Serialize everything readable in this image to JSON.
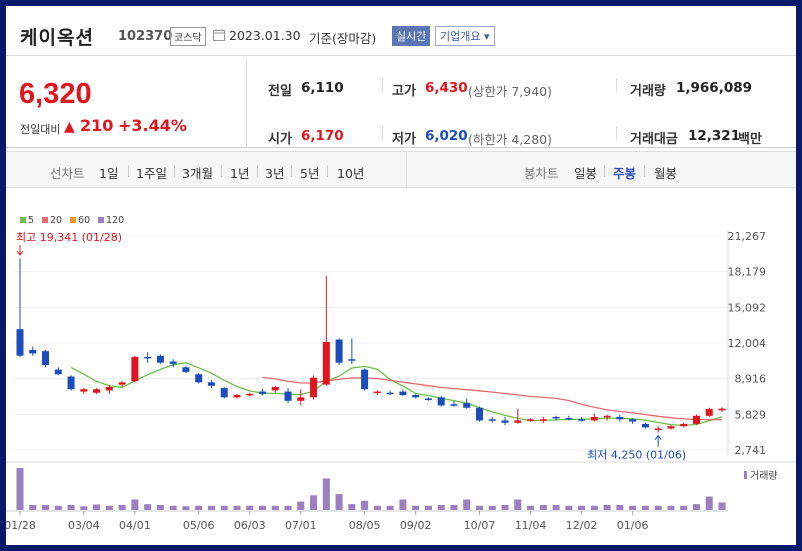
{
  "header": {
    "name": "케이옥션",
    "code": "102370",
    "market": "코스닥",
    "date": "2023.01.30",
    "basis": "기준(장마감)",
    "realtime": "실시간",
    "company_info": "기업개요"
  },
  "quote": {
    "price": "6,320",
    "change_label": "전일대비",
    "change_value": "210",
    "change_pct": "+3.44%",
    "prev_close_label": "전일",
    "prev_close": "6,110",
    "open_label": "시가",
    "open": "6,170",
    "high_label": "고가",
    "high": "6,430",
    "upper_limit": "(상한가 7,940)",
    "low_label": "저가",
    "low": "6,020",
    "lower_limit": "(하한가 4,280)",
    "volume_label": "거래량",
    "volume": "1,966,089",
    "amount_label": "거래대금",
    "amount": "12,321",
    "amount_unit": "백만"
  },
  "tabs": {
    "line_label": "선차트",
    "line_tabs": [
      "1일",
      "1주일",
      "3개월",
      "1년",
      "3년",
      "5년",
      "10년"
    ],
    "candle_label": "봉차트",
    "candle_tabs": [
      "일봉",
      "주봉",
      "월봉"
    ],
    "active_candle": "주봉"
  },
  "colors": {
    "up": "#e0151e",
    "down": "#1a4dbb",
    "ma5": "#6cc04a",
    "ma20": "#e36b6b",
    "ma60": "#f0962c",
    "ma120": "#9b80c0"
  },
  "chart_data": {
    "type": "candlestick",
    "interval": "weekly",
    "legend": [
      "5",
      "20",
      "60",
      "120"
    ],
    "y_ticks": [
      "21,267",
      "18,179",
      "15,092",
      "12,004",
      "8,916",
      "5,829",
      "2,741"
    ],
    "ylim": [
      2741,
      21267
    ],
    "x_ticks": [
      "01/28",
      "03/04",
      "04/01",
      "05/06",
      "06/03",
      "07/01",
      "08/05",
      "09/02",
      "10/07",
      "11/04",
      "12/02",
      "01/06"
    ],
    "x_tick_index": [
      0,
      5,
      9,
      14,
      18,
      22,
      27,
      31,
      36,
      40,
      44,
      48
    ],
    "high_annotation": "최고 19,341 (01/28)",
    "low_annotation": "최저 4,250 (01/06)",
    "volume_label": "거래량",
    "candles": [
      {
        "o": 13200,
        "h": 19341,
        "l": 10800,
        "c": 10900
      },
      {
        "o": 11400,
        "h": 11700,
        "l": 10900,
        "c": 11100
      },
      {
        "o": 11300,
        "h": 11400,
        "l": 9900,
        "c": 10100
      },
      {
        "o": 9700,
        "h": 9900,
        "l": 9200,
        "c": 9300
      },
      {
        "o": 9100,
        "h": 9200,
        "l": 7900,
        "c": 8000
      },
      {
        "o": 7800,
        "h": 8100,
        "l": 7600,
        "c": 8000
      },
      {
        "o": 7700,
        "h": 8100,
        "l": 7600,
        "c": 8000
      },
      {
        "o": 7900,
        "h": 8400,
        "l": 7600,
        "c": 8200
      },
      {
        "o": 8400,
        "h": 8700,
        "l": 8200,
        "c": 8600
      },
      {
        "o": 8700,
        "h": 10900,
        "l": 8600,
        "c": 10800
      },
      {
        "o": 10800,
        "h": 11200,
        "l": 10300,
        "c": 10700
      },
      {
        "o": 10900,
        "h": 11000,
        "l": 10200,
        "c": 10300
      },
      {
        "o": 10400,
        "h": 10600,
        "l": 9900,
        "c": 10200
      },
      {
        "o": 9900,
        "h": 10000,
        "l": 9400,
        "c": 9500
      },
      {
        "o": 9300,
        "h": 9400,
        "l": 8500,
        "c": 8600
      },
      {
        "o": 8600,
        "h": 8800,
        "l": 8100,
        "c": 8300
      },
      {
        "o": 8100,
        "h": 8200,
        "l": 7200,
        "c": 7300
      },
      {
        "o": 7300,
        "h": 7600,
        "l": 7200,
        "c": 7500
      },
      {
        "o": 7500,
        "h": 7700,
        "l": 7400,
        "c": 7600
      },
      {
        "o": 7800,
        "h": 8000,
        "l": 7500,
        "c": 7600
      },
      {
        "o": 7900,
        "h": 8300,
        "l": 7700,
        "c": 8200
      },
      {
        "o": 7800,
        "h": 8100,
        "l": 6800,
        "c": 7000
      },
      {
        "o": 7000,
        "h": 8000,
        "l": 6600,
        "c": 7300
      },
      {
        "o": 7300,
        "h": 9200,
        "l": 7100,
        "c": 9000
      },
      {
        "o": 8400,
        "h": 17800,
        "l": 8300,
        "c": 12100
      },
      {
        "o": 12300,
        "h": 12400,
        "l": 10100,
        "c": 10300
      },
      {
        "o": 10600,
        "h": 12400,
        "l": 10200,
        "c": 10500
      },
      {
        "o": 9700,
        "h": 9800,
        "l": 7900,
        "c": 8000
      },
      {
        "o": 7700,
        "h": 7900,
        "l": 7500,
        "c": 7800
      },
      {
        "o": 7700,
        "h": 7900,
        "l": 7500,
        "c": 7600
      },
      {
        "o": 7800,
        "h": 8000,
        "l": 7400,
        "c": 7500
      },
      {
        "o": 7500,
        "h": 7600,
        "l": 7200,
        "c": 7300
      },
      {
        "o": 7200,
        "h": 7300,
        "l": 7000,
        "c": 7100
      },
      {
        "o": 7300,
        "h": 7400,
        "l": 6500,
        "c": 6600
      },
      {
        "o": 6700,
        "h": 7000,
        "l": 6500,
        "c": 6600
      },
      {
        "o": 6800,
        "h": 7200,
        "l": 6300,
        "c": 6400
      },
      {
        "o": 6400,
        "h": 6500,
        "l": 5200,
        "c": 5300
      },
      {
        "o": 5400,
        "h": 5600,
        "l": 5100,
        "c": 5300
      },
      {
        "o": 5300,
        "h": 5600,
        "l": 4900,
        "c": 5100
      },
      {
        "o": 5100,
        "h": 6300,
        "l": 5000,
        "c": 5300
      },
      {
        "o": 5300,
        "h": 5500,
        "l": 5200,
        "c": 5400
      },
      {
        "o": 5300,
        "h": 5600,
        "l": 5100,
        "c": 5400
      },
      {
        "o": 5600,
        "h": 5700,
        "l": 5300,
        "c": 5500
      },
      {
        "o": 5500,
        "h": 5700,
        "l": 5300,
        "c": 5400
      },
      {
        "o": 5400,
        "h": 5600,
        "l": 5200,
        "c": 5300
      },
      {
        "o": 5300,
        "h": 5900,
        "l": 5200,
        "c": 5600
      },
      {
        "o": 5600,
        "h": 5800,
        "l": 5300,
        "c": 5700
      },
      {
        "o": 5600,
        "h": 5800,
        "l": 5200,
        "c": 5400
      },
      {
        "o": 5400,
        "h": 5500,
        "l": 5000,
        "c": 5200
      },
      {
        "o": 5000,
        "h": 5100,
        "l": 4600,
        "c": 4700
      },
      {
        "o": 4500,
        "h": 4800,
        "l": 4250,
        "c": 4600
      },
      {
        "o": 4600,
        "h": 4900,
        "l": 4500,
        "c": 4800
      },
      {
        "o": 4800,
        "h": 5100,
        "l": 4700,
        "c": 5000
      },
      {
        "o": 5000,
        "h": 5800,
        "l": 4900,
        "c": 5700
      },
      {
        "o": 5700,
        "h": 6400,
        "l": 5600,
        "c": 6300
      },
      {
        "o": 6170,
        "h": 6430,
        "l": 6020,
        "c": 6320
      }
    ],
    "volume": [
      1.0,
      0.12,
      0.12,
      0.1,
      0.12,
      0.09,
      0.13,
      0.1,
      0.12,
      0.25,
      0.14,
      0.12,
      0.1,
      0.09,
      0.1,
      0.1,
      0.1,
      0.1,
      0.1,
      0.1,
      0.1,
      0.1,
      0.2,
      0.35,
      0.75,
      0.38,
      0.14,
      0.22,
      0.1,
      0.1,
      0.25,
      0.1,
      0.1,
      0.12,
      0.12,
      0.25,
      0.1,
      0.1,
      0.12,
      0.25,
      0.1,
      0.12,
      0.12,
      0.1,
      0.1,
      0.1,
      0.12,
      0.12,
      0.1,
      0.1,
      0.1,
      0.1,
      0.1,
      0.14,
      0.32,
      0.18
    ]
  }
}
